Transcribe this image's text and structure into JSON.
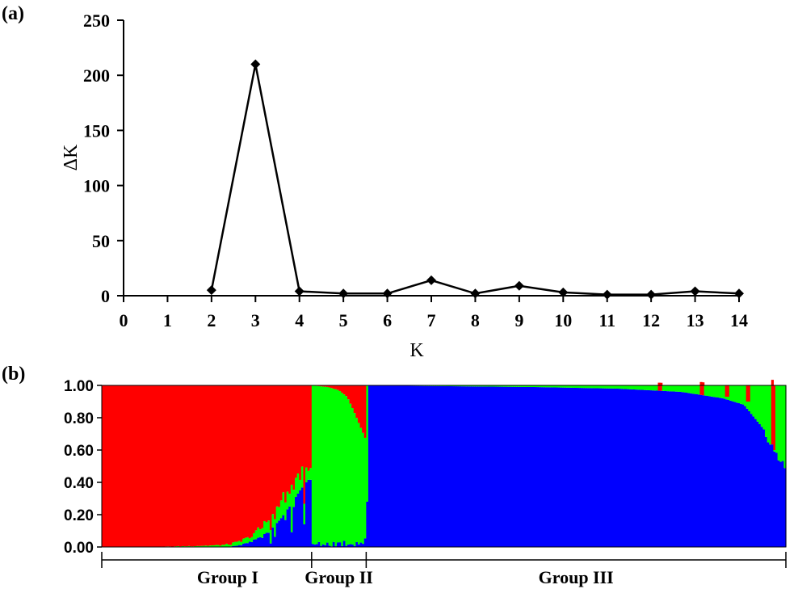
{
  "panel_a": {
    "label": "(a)",
    "chart_data": {
      "type": "line",
      "xlabel": "K",
      "ylabel": "ΔK",
      "xlim": [
        0,
        14
      ],
      "ylim": [
        0,
        250
      ],
      "x_ticks": [
        "0",
        "1",
        "2",
        "3",
        "4",
        "5",
        "6",
        "7",
        "8",
        "9",
        "10",
        "11",
        "12",
        "13",
        "14"
      ],
      "y_ticks": [
        "0",
        "50",
        "100",
        "150",
        "200",
        "250"
      ],
      "points": [
        {
          "x": 2,
          "y": 5
        },
        {
          "x": 3,
          "y": 210
        },
        {
          "x": 4,
          "y": 4
        },
        {
          "x": 5,
          "y": 2
        },
        {
          "x": 6,
          "y": 2
        },
        {
          "x": 7,
          "y": 14
        },
        {
          "x": 8,
          "y": 2
        },
        {
          "x": 9,
          "y": 9
        },
        {
          "x": 10,
          "y": 3
        },
        {
          "x": 11,
          "y": 1
        },
        {
          "x": 12,
          "y": 1
        },
        {
          "x": 13,
          "y": 4
        },
        {
          "x": 14,
          "y": 2
        }
      ],
      "line_color": "#000000",
      "marker": "diamond"
    }
  },
  "panel_b": {
    "label": "(b)",
    "chart_data": {
      "type": "bar",
      "stacked": true,
      "ylim": [
        0,
        1
      ],
      "y_ticks": [
        "0.00",
        "0.20",
        "0.40",
        "0.60",
        "0.80",
        "1.00"
      ],
      "colors": {
        "red": "#ff0000",
        "green": "#00ff00",
        "blue": "#0000ff"
      },
      "groups": [
        {
          "name": "Group I",
          "bar_count": 100,
          "description_components": [
            "red",
            "green",
            "blue"
          ],
          "blue_profile": [
            [
              0,
              0
            ],
            [
              5,
              0
            ],
            [
              10,
              0
            ],
            [
              15,
              0
            ],
            [
              20,
              0
            ],
            [
              25,
              0
            ],
            [
              30,
              0
            ],
            [
              35,
              0
            ],
            [
              40,
              0
            ],
            [
              45,
              0
            ],
            [
              50,
              0
            ],
            [
              55,
              0
            ],
            [
              60,
              0
            ],
            [
              65,
              0.01
            ],
            [
              70,
              0.03
            ],
            [
              75,
              0.06
            ],
            [
              80,
              0.1
            ],
            [
              85,
              0.17
            ],
            [
              90,
              0.26
            ],
            [
              95,
              0.36
            ],
            [
              100,
              0.44
            ]
          ],
          "green_profile": [
            [
              0,
              0
            ],
            [
              20,
              0
            ],
            [
              40,
              0.005
            ],
            [
              55,
              0.01
            ],
            [
              65,
              0.02
            ],
            [
              70,
              0.03
            ],
            [
              75,
              0.05
            ],
            [
              80,
              0.08
            ],
            [
              85,
              0.1
            ],
            [
              90,
              0.12
            ],
            [
              95,
              0.1
            ],
            [
              100,
              0.07
            ]
          ]
        },
        {
          "name": "Group II",
          "bar_count": 26,
          "green_top": [
            [
              0,
              1.0
            ],
            [
              30,
              0.99
            ],
            [
              50,
              0.97
            ],
            [
              65,
              0.93
            ],
            [
              75,
              0.86
            ],
            [
              85,
              0.78
            ],
            [
              95,
              0.7
            ],
            [
              100,
              0.66
            ]
          ],
          "blue_profile": [
            [
              0,
              0.02
            ],
            [
              50,
              0.03
            ],
            [
              100,
              0.04
            ]
          ]
        },
        {
          "name": "Group III",
          "bar_count": 200,
          "blue_top": [
            [
              0,
              1.0
            ],
            [
              40,
              0.99
            ],
            [
              60,
              0.98
            ],
            [
              75,
              0.96
            ],
            [
              85,
              0.92
            ],
            [
              90,
              0.88
            ],
            [
              95,
              0.72
            ],
            [
              100,
              0.5
            ]
          ],
          "red_spikes": [
            {
              "pos": 0.7,
              "depth": 0.05
            },
            {
              "pos": 0.8,
              "depth": 0.08
            },
            {
              "pos": 0.86,
              "depth": 0.07
            },
            {
              "pos": 0.91,
              "depth": 0.1
            },
            {
              "pos": 0.97,
              "depth": 0.4
            }
          ]
        }
      ]
    }
  }
}
